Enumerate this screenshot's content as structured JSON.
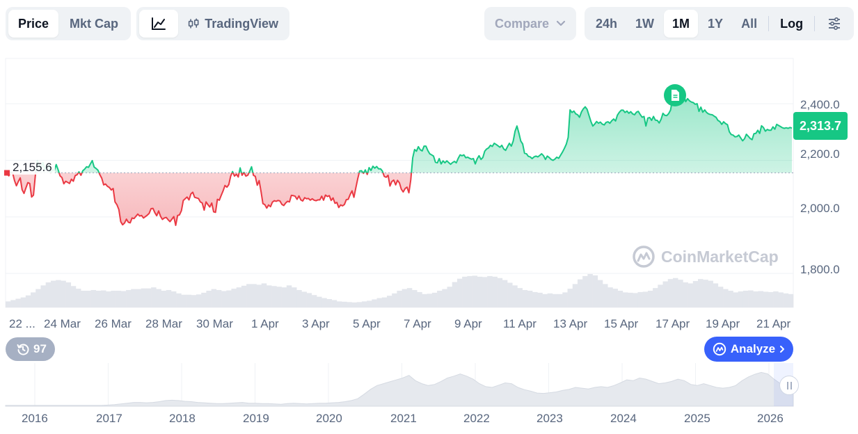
{
  "toolbar": {
    "type_tabs": [
      {
        "label": "Price",
        "active": true
      },
      {
        "label": "Mkt Cap",
        "active": false
      }
    ],
    "view_icon": "line-chart-icon",
    "tradingview_label": "TradingView",
    "compare_label": "Compare",
    "ranges": [
      {
        "label": "24h",
        "active": false
      },
      {
        "label": "1W",
        "active": false
      },
      {
        "label": "1M",
        "active": true
      },
      {
        "label": "1Y",
        "active": false
      },
      {
        "label": "All",
        "active": false
      }
    ],
    "log_label": "Log",
    "settings_icon": "sliders-icon"
  },
  "chart": {
    "current_price_label": "2,313.7",
    "reference_price_label": "2,155.6",
    "watermark": "CoinMarketCap",
    "history_badge": "97",
    "analyze_label": "Analyze",
    "colors": {
      "up": "#16c784",
      "down": "#ea3943",
      "volume": "#e3e6ec",
      "accent": "#3861fb"
    }
  },
  "chart_data": {
    "type": "area",
    "y_ticks": [
      "2,400.0",
      "2,200.0",
      "2,000.0",
      "1,800.0"
    ],
    "y_tick_values": [
      2400,
      2200,
      2000,
      1800
    ],
    "ylim": [
      1680,
      2560
    ],
    "x_ticks": [
      "22 ...",
      "24 Mar",
      "26 Mar",
      "28 Mar",
      "30 Mar",
      "1 Apr",
      "3 Apr",
      "5 Apr",
      "7 Apr",
      "9 Apr",
      "11 Apr",
      "13 Apr",
      "15 Apr",
      "17 Apr",
      "19 Apr",
      "21 Apr"
    ],
    "reference_value": 2155.6,
    "last_value": 2313.7,
    "series": [
      {
        "x_start": "2025-03-22",
        "x_end": "2025-04-22",
        "values": [
          2152,
          2145,
          2158,
          2155,
          2128,
          2110,
          2125,
          2138,
          2096,
          2083,
          2102,
          2121,
          2118,
          2070,
          2077,
          2149,
          2197,
          2183,
          2176,
          2192,
          2168,
          2179,
          2181,
          2154,
          2167,
          2164,
          2185,
          2166,
          2145,
          2139,
          2117,
          2126,
          2122,
          2118,
          2133,
          2126,
          2146,
          2149,
          2159,
          2147,
          2163,
          2169,
          2177,
          2175,
          2187,
          2199,
          2176,
          2171,
          2165,
          2149,
          2137,
          2113,
          2116,
          2108,
          2104,
          2095,
          2100,
          2053,
          2043,
          2026,
          1983,
          1972,
          1978,
          1992,
          1981,
          1979,
          1996,
          1994,
          2002,
          2010,
          2003,
          2005,
          1996,
          2001,
          2006,
          2012,
          2029,
          2030,
          2015,
          2004,
          2021,
          2002,
          1991,
          1996,
          1998,
          1990,
          1983,
          1992,
          2001,
          1970,
          2005,
          2007,
          2022,
          2058,
          2064,
          2070,
          2060,
          2081,
          2087,
          2069,
          2067,
          2065,
          2053,
          2049,
          2024,
          2053,
          2043,
          2035,
          2049,
          2018,
          2016,
          2062,
          2059,
          2076,
          2092,
          2111,
          2105,
          2114,
          2144,
          2160,
          2144,
          2151,
          2141,
          2173,
          2147,
          2157,
          2144,
          2147,
          2161,
          2177,
          2147,
          2143,
          2112,
          2128,
          2090,
          2047,
          2043,
          2031,
          2042,
          2036,
          2052,
          2057,
          2055,
          2058,
          2056,
          2044,
          2040,
          2049,
          2055,
          2053,
          2076,
          2075,
          2073,
          2062,
          2074,
          2060,
          2056,
          2068,
          2064,
          2065,
          2059,
          2064,
          2059,
          2057,
          2060,
          2060,
          2073,
          2059,
          2077,
          2072,
          2075,
          2058,
          2067,
          2048,
          2051,
          2033,
          2042,
          2039,
          2044,
          2061,
          2062,
          2079,
          2092,
          2069,
          2102,
          2135,
          2162,
          2163,
          2154,
          2166,
          2150,
          2174,
          2164,
          2179,
          2172,
          2178,
          2170,
          2170,
          2162,
          2143,
          2140,
          2147,
          2109,
          2125,
          2130,
          2113,
          2129,
          2120,
          2098,
          2088,
          2100,
          2105,
          2085,
          2131,
          2209,
          2238,
          2232,
          2248,
          2237,
          2233,
          2250,
          2250,
          2234,
          2223,
          2219,
          2215,
          2193,
          2191,
          2206,
          2187,
          2198,
          2191,
          2198,
          2192,
          2186,
          2192,
          2196,
          2191,
          2207,
          2219,
          2216,
          2219,
          2209,
          2211,
          2207,
          2204,
          2206,
          2187,
          2205,
          2216,
          2203,
          2210,
          2232,
          2240,
          2244,
          2253,
          2249,
          2260,
          2256,
          2251,
          2246,
          2253,
          2240,
          2235,
          2248,
          2260,
          2250,
          2268,
          2303,
          2321,
          2296,
          2268,
          2258,
          2225,
          2223,
          2214,
          2212,
          2206,
          2212,
          2215,
          2212,
          2217,
          2223,
          2216,
          2203,
          2215,
          2210,
          2203,
          2200,
          2204,
          2211,
          2207,
          2218,
          2229,
          2242,
          2257,
          2281,
          2378,
          2369,
          2374,
          2364,
          2361,
          2352,
          2371,
          2382,
          2389,
          2380,
          2358,
          2337,
          2321,
          2328,
          2337,
          2331,
          2335,
          2328,
          2325,
          2334,
          2336,
          2331,
          2340,
          2346,
          2339,
          2360,
          2370,
          2377,
          2377,
          2369,
          2374,
          2366,
          2372,
          2364,
          2361,
          2370,
          2373,
          2362,
          2352,
          2355,
          2321,
          2349,
          2351,
          2341,
          2355,
          2342,
          2341,
          2332,
          2345,
          2366,
          2359,
          2358,
          2365,
          2377,
          2415,
          2454,
          2445,
          2438,
          2424,
          2429,
          2431,
          2407,
          2418,
          2410,
          2406,
          2404,
          2398,
          2400,
          2373,
          2388,
          2370,
          2378,
          2369,
          2364,
          2362,
          2361,
          2356,
          2352,
          2341,
          2337,
          2327,
          2336,
          2330,
          2326,
          2301,
          2291,
          2289,
          2283,
          2284,
          2289,
          2279,
          2269,
          2276,
          2292,
          2285,
          2277,
          2273,
          2294,
          2295,
          2306,
          2295,
          2322,
          2316,
          2303,
          2309,
          2306,
          2306,
          2318,
          2310,
          2327,
          2323,
          2319,
          2315,
          2313,
          2315,
          2313,
          2316,
          2313.7
        ]
      }
    ],
    "volume": [
      0.18,
      0.22,
      0.26,
      0.3,
      0.36,
      0.45,
      0.55,
      0.66,
      0.75,
      0.8,
      0.82,
      0.8,
      0.75,
      0.64,
      0.56,
      0.5,
      0.5,
      0.52,
      0.5,
      0.51,
      0.48,
      0.5,
      0.5,
      0.49,
      0.52,
      0.55,
      0.55,
      0.57,
      0.57,
      0.6,
      0.55,
      0.5,
      0.52,
      0.48,
      0.42,
      0.38,
      0.38,
      0.37,
      0.39,
      0.44,
      0.5,
      0.55,
      0.52,
      0.49,
      0.51,
      0.56,
      0.6,
      0.65,
      0.7,
      0.7,
      0.68,
      0.72,
      0.66,
      0.64,
      0.62,
      0.6,
      0.66,
      0.6,
      0.52,
      0.47,
      0.43,
      0.37,
      0.32,
      0.28,
      0.25,
      0.22,
      0.18,
      0.17,
      0.16,
      0.15,
      0.16,
      0.18,
      0.2,
      0.24,
      0.28,
      0.3,
      0.35,
      0.42,
      0.5,
      0.55,
      0.58,
      0.52,
      0.46,
      0.4,
      0.41,
      0.44,
      0.5,
      0.55,
      0.62,
      0.76,
      0.86,
      0.92,
      0.94,
      0.95,
      0.92,
      0.91,
      0.94,
      0.92,
      0.88,
      0.82,
      0.74,
      0.66,
      0.58,
      0.52,
      0.5,
      0.46,
      0.44,
      0.4,
      0.42,
      0.4,
      0.4,
      0.45,
      0.56,
      0.7,
      0.84,
      0.94,
      1.0,
      0.96,
      0.82,
      0.7,
      0.6,
      0.56,
      0.5,
      0.45,
      0.44,
      0.43,
      0.46,
      0.47,
      0.5,
      0.58,
      0.68,
      0.78,
      0.85,
      0.88,
      0.83,
      0.75,
      0.72,
      0.79,
      0.85,
      0.83,
      0.8,
      0.72,
      0.62,
      0.55,
      0.5,
      0.45,
      0.48,
      0.5,
      0.51,
      0.48,
      0.49,
      0.47,
      0.46,
      0.48,
      0.45,
      0.42,
      0.4
    ],
    "navigator": {
      "x_ticks": [
        "2016",
        "2017",
        "2018",
        "2019",
        "2020",
        "2021",
        "2022",
        "2023",
        "2024",
        "2025",
        "2026"
      ],
      "values": [
        0.02,
        0.02,
        0.02,
        0.02,
        0.02,
        0.02,
        0.02,
        0.02,
        0.02,
        0.02,
        0.02,
        0.02,
        0.02,
        0.02,
        0.02,
        0.02,
        0.03,
        0.04,
        0.06,
        0.08,
        0.1,
        0.1,
        0.09,
        0.1,
        0.12,
        0.15,
        0.16,
        0.15,
        0.13,
        0.12,
        0.1,
        0.09,
        0.08,
        0.07,
        0.07,
        0.08,
        0.09,
        0.1,
        0.08,
        0.08,
        0.07,
        0.07,
        0.06,
        0.05,
        0.07,
        0.08,
        0.07,
        0.06,
        0.07,
        0.08,
        0.08,
        0.09,
        0.1,
        0.12,
        0.15,
        0.2,
        0.32,
        0.45,
        0.55,
        0.6,
        0.65,
        0.7,
        0.75,
        0.82,
        0.68,
        0.6,
        0.55,
        0.58,
        0.66,
        0.75,
        0.8,
        0.86,
        0.8,
        0.72,
        0.6,
        0.52,
        0.5,
        0.56,
        0.62,
        0.6,
        0.5,
        0.44,
        0.4,
        0.35,
        0.34,
        0.36,
        0.38,
        0.42,
        0.45,
        0.5,
        0.48,
        0.46,
        0.5,
        0.52,
        0.5,
        0.55,
        0.62,
        0.7,
        0.68,
        0.75,
        0.72,
        0.66,
        0.6,
        0.62,
        0.66,
        0.72,
        0.68,
        0.58,
        0.55,
        0.6,
        0.55,
        0.5,
        0.48,
        0.5,
        0.55,
        0.68,
        0.78,
        0.85,
        0.9,
        0.86,
        0.72,
        0.6,
        0.55,
        0.66
      ]
    }
  }
}
